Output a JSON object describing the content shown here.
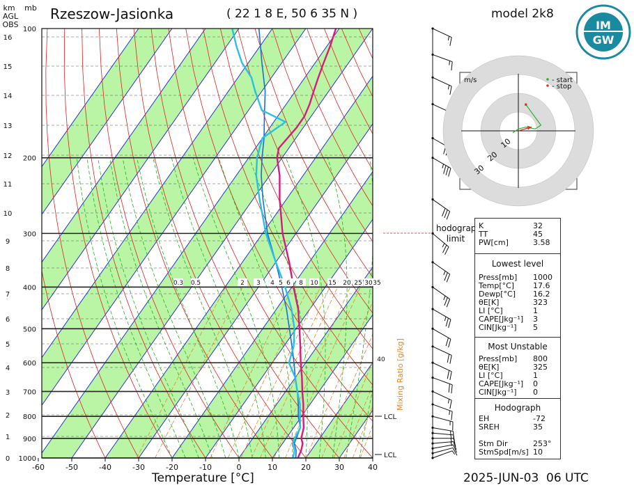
{
  "header": {
    "station": "Rzeszow-Jasionka",
    "coords": "( 22 1 8  E, 50 6 35 N )",
    "model": "model 2k8"
  },
  "logo": {
    "text": "IMGW"
  },
  "footer": {
    "date": "2025-JUN-03",
    "time": "06 UTC"
  },
  "chart_data": {
    "type": "skew-t",
    "xlabel": "Temperature [°C]",
    "x_ticks": [
      -60,
      -50,
      -40,
      -30,
      -20,
      -10,
      0,
      10,
      20,
      30,
      40
    ],
    "pressure_ticks": [
      100,
      200,
      300,
      400,
      500,
      600,
      700,
      800,
      900,
      1000
    ],
    "height_axis_label": [
      "km",
      "AGL",
      "OBS"
    ],
    "pressure_axis_label": "mb",
    "height_ticks_km": [
      0,
      1,
      2,
      3,
      4,
      5,
      6,
      7,
      8,
      9,
      10,
      11,
      12,
      13,
      14,
      15,
      16
    ],
    "mixing_ratio_label": "Mixing Ratio [g/kg]",
    "mixing_ratio_ticks": [
      "0.3",
      "0.5",
      "2",
      "3",
      "4",
      "5",
      "6",
      "8",
      "10",
      "15",
      "20",
      "25",
      "30",
      "35"
    ],
    "mixing_ratio_40": "40",
    "lcl_labels": [
      "LCL",
      "LCL"
    ],
    "temperature_profile": [
      {
        "p": 1000,
        "t": 17.6
      },
      {
        "p": 960,
        "t": 17.0
      },
      {
        "p": 925,
        "t": 16.0
      },
      {
        "p": 900,
        "t": 14.5
      },
      {
        "p": 850,
        "t": 13.0
      },
      {
        "p": 800,
        "t": 10.5
      },
      {
        "p": 750,
        "t": 8.0
      },
      {
        "p": 700,
        "t": 5.0
      },
      {
        "p": 650,
        "t": 2.0
      },
      {
        "p": 600,
        "t": -1.5
      },
      {
        "p": 550,
        "t": -5.0
      },
      {
        "p": 500,
        "t": -9.0
      },
      {
        "p": 450,
        "t": -13.5
      },
      {
        "p": 400,
        "t": -19.5
      },
      {
        "p": 350,
        "t": -26.0
      },
      {
        "p": 300,
        "t": -34.0
      },
      {
        "p": 250,
        "t": -42.0
      },
      {
        "p": 220,
        "t": -47.0
      },
      {
        "p": 200,
        "t": -51.5
      },
      {
        "p": 190,
        "t": -53.0
      },
      {
        "p": 170,
        "t": -52.0
      },
      {
        "p": 160,
        "t": -52.0
      },
      {
        "p": 150,
        "t": -53.0
      },
      {
        "p": 140,
        "t": -54.5
      },
      {
        "p": 130,
        "t": -56.0
      },
      {
        "p": 120,
        "t": -57.5
      },
      {
        "p": 110,
        "t": -59.0
      },
      {
        "p": 100,
        "t": -61.0
      }
    ],
    "dewpoint_profile": [
      {
        "p": 1000,
        "t": 16.2
      },
      {
        "p": 960,
        "t": 15.0
      },
      {
        "p": 925,
        "t": 13.0
      },
      {
        "p": 900,
        "t": 12.5
      },
      {
        "p": 850,
        "t": 12.0
      },
      {
        "p": 800,
        "t": 9.5
      },
      {
        "p": 750,
        "t": 7.0
      },
      {
        "p": 700,
        "t": 3.5
      },
      {
        "p": 650,
        "t": 0.0
      },
      {
        "p": 600,
        "t": -5.0
      },
      {
        "p": 550,
        "t": -7.0
      },
      {
        "p": 500,
        "t": -10.5
      },
      {
        "p": 450,
        "t": -15.5
      },
      {
        "p": 400,
        "t": -22.0
      },
      {
        "p": 350,
        "t": -30.0
      },
      {
        "p": 300,
        "t": -39.0
      },
      {
        "p": 250,
        "t": -48.0
      },
      {
        "p": 220,
        "t": -54.0
      },
      {
        "p": 200,
        "t": -57.5
      },
      {
        "p": 180,
        "t": -60.0
      },
      {
        "p": 165,
        "t": -56.5
      },
      {
        "p": 155,
        "t": -66.0
      },
      {
        "p": 140,
        "t": -72.0
      },
      {
        "p": 130,
        "t": -76.0
      },
      {
        "p": 120,
        "t": -82.0
      },
      {
        "p": 110,
        "t": -87.0
      },
      {
        "p": 100,
        "t": -92.0
      }
    ],
    "parcel_profile": [
      {
        "p": 1000,
        "t": 17.0
      },
      {
        "p": 960,
        "t": 15.5
      },
      {
        "p": 925,
        "t": 13.5
      },
      {
        "p": 900,
        "t": 13.0
      },
      {
        "p": 850,
        "t": 12.0
      },
      {
        "p": 800,
        "t": 9.0
      },
      {
        "p": 750,
        "t": 6.5
      },
      {
        "p": 700,
        "t": 3.5
      },
      {
        "p": 650,
        "t": 0.0
      },
      {
        "p": 600,
        "t": -3.5
      },
      {
        "p": 550,
        "t": -7.5
      },
      {
        "p": 500,
        "t": -12.0
      },
      {
        "p": 450,
        "t": -17.0
      },
      {
        "p": 400,
        "t": -23.0
      },
      {
        "p": 350,
        "t": -30.0
      },
      {
        "p": 300,
        "t": -38.5
      },
      {
        "p": 250,
        "t": -47.0
      },
      {
        "p": 220,
        "t": -52.5
      },
      {
        "p": 200,
        "t": -56.0
      },
      {
        "p": 180,
        "t": -59.5
      },
      {
        "p": 160,
        "t": -64.0
      },
      {
        "p": 140,
        "t": -69.0
      },
      {
        "p": 120,
        "t": -76.0
      },
      {
        "p": 100,
        "t": -84.0
      }
    ],
    "wind_profile": [
      {
        "p": 1000,
        "dir": 250,
        "spd": 5
      },
      {
        "p": 975,
        "dir": 255,
        "spd": 10
      },
      {
        "p": 950,
        "dir": 260,
        "spd": 10
      },
      {
        "p": 925,
        "dir": 265,
        "spd": 15
      },
      {
        "p": 900,
        "dir": 270,
        "spd": 15
      },
      {
        "p": 875,
        "dir": 275,
        "spd": 15
      },
      {
        "p": 850,
        "dir": 280,
        "spd": 15
      },
      {
        "p": 800,
        "dir": 285,
        "spd": 15
      },
      {
        "p": 750,
        "dir": 290,
        "spd": 15
      },
      {
        "p": 700,
        "dir": 295,
        "spd": 15
      },
      {
        "p": 650,
        "dir": 290,
        "spd": 20
      },
      {
        "p": 600,
        "dir": 295,
        "spd": 20
      },
      {
        "p": 550,
        "dir": 295,
        "spd": 20
      },
      {
        "p": 500,
        "dir": 300,
        "spd": 20
      },
      {
        "p": 450,
        "dir": 300,
        "spd": 25
      },
      {
        "p": 400,
        "dir": 305,
        "spd": 25
      },
      {
        "p": 350,
        "dir": 305,
        "spd": 25
      },
      {
        "p": 300,
        "dir": 310,
        "spd": 25
      },
      {
        "p": 250,
        "dir": 305,
        "spd": 30
      },
      {
        "p": 200,
        "dir": 300,
        "spd": 35
      },
      {
        "p": 180,
        "dir": 300,
        "spd": 30
      },
      {
        "p": 150,
        "dir": 295,
        "spd": 25
      },
      {
        "p": 130,
        "dir": 295,
        "spd": 15
      },
      {
        "p": 115,
        "dir": 290,
        "spd": 15
      },
      {
        "p": 100,
        "dir": 295,
        "spd": 15
      }
    ],
    "hodograph": {
      "unit_label": "m/s",
      "legend": [
        "- start",
        "- stop"
      ],
      "ring_labels": [
        "10",
        "20",
        "30"
      ],
      "ring_values": [
        10,
        20,
        30
      ],
      "trace": [
        [
          -3,
          -1
        ],
        [
          0,
          1
        ],
        [
          4,
          2
        ],
        [
          9,
          1
        ],
        [
          12,
          3
        ],
        [
          4,
          14
        ]
      ]
    },
    "hodograph_limit_label": [
      "hodograph",
      "limit"
    ]
  },
  "indices": {
    "top": [
      {
        "k": "K",
        "v": "32"
      },
      {
        "k": "TT",
        "v": "45"
      },
      {
        "k": "PW[cm]",
        "v": "3.58"
      }
    ],
    "lowest_title": "Lowest level",
    "lowest": [
      {
        "k": "Press[mb]",
        "v": "1000"
      },
      {
        "k": "Temp[°C]",
        "v": "17.6"
      },
      {
        "k": "Dewp[°C]",
        "v": "16.2"
      },
      {
        "k": "θE[K]",
        "v": "323"
      },
      {
        "k": "LI [°C]",
        "v": "1"
      },
      {
        "k": "CAPE[Jkg⁻¹]",
        "v": "3"
      },
      {
        "k": "CIN[Jkg⁻¹]",
        "v": "5"
      }
    ],
    "unstable_title": "Most Unstable",
    "unstable": [
      {
        "k": "Press[mb]",
        "v": "800"
      },
      {
        "k": "θE[K]",
        "v": "325"
      },
      {
        "k": "LI [°C]",
        "v": "1"
      },
      {
        "k": "CAPE[Jkg⁻¹]",
        "v": "0"
      },
      {
        "k": "CIN[Jkg⁻¹]",
        "v": "0"
      }
    ],
    "hodo_title": "Hodograph",
    "hodo": [
      {
        "k": "EH",
        "v": "-72"
      },
      {
        "k": "SREH",
        "v": "35"
      },
      {
        "k": "Stm Dir",
        "v": "253°"
      },
      {
        "k": "StmSpd[m/s]",
        "v": "10"
      }
    ]
  },
  "colors": {
    "temperature": "#d81b7a",
    "dewpoint": "#2bbfe3",
    "parcel": "#1a6fd6",
    "green_band": "#b9f5a5",
    "isotherm": "#2a32d8",
    "dry_adiabat": "#e02020",
    "moist_adiabat": "#20b020",
    "mixing_ratio": "#e8872a"
  }
}
